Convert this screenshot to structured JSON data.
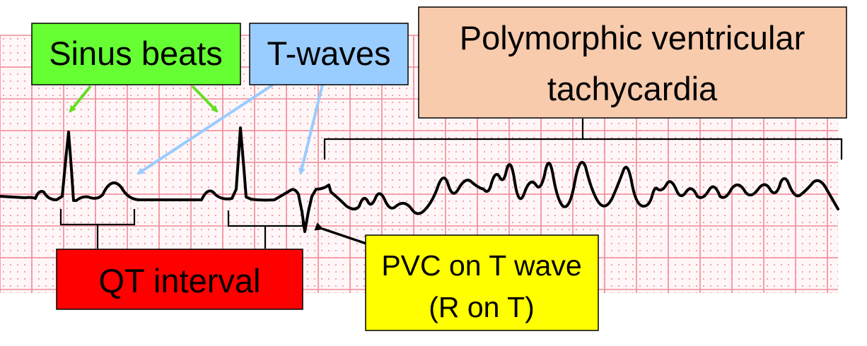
{
  "labels": {
    "sinus_beats": "Sinus beats",
    "t_waves": "T-waves",
    "polymorphic_line1": "Polymorphic ventricular",
    "polymorphic_line2": "tachycardia",
    "qt_interval": "QT interval",
    "pvc_line1": "PVC on T wave",
    "pvc_line2": "(R on T)"
  },
  "colors": {
    "grid_major": "#f08a97",
    "grid_minor_dot": "#f4a0aa",
    "ecg_trace": "#000000",
    "sinus_box": "#66ff33",
    "sinus_arrow": "#66dd22",
    "twave_box": "#99ccff",
    "twave_arrow": "#99ccff",
    "polymorphic_box": "#f8cbad",
    "qt_box": "#ff0000",
    "pvc_box": "#ffff00",
    "pvc_arrow": "#000000"
  }
}
